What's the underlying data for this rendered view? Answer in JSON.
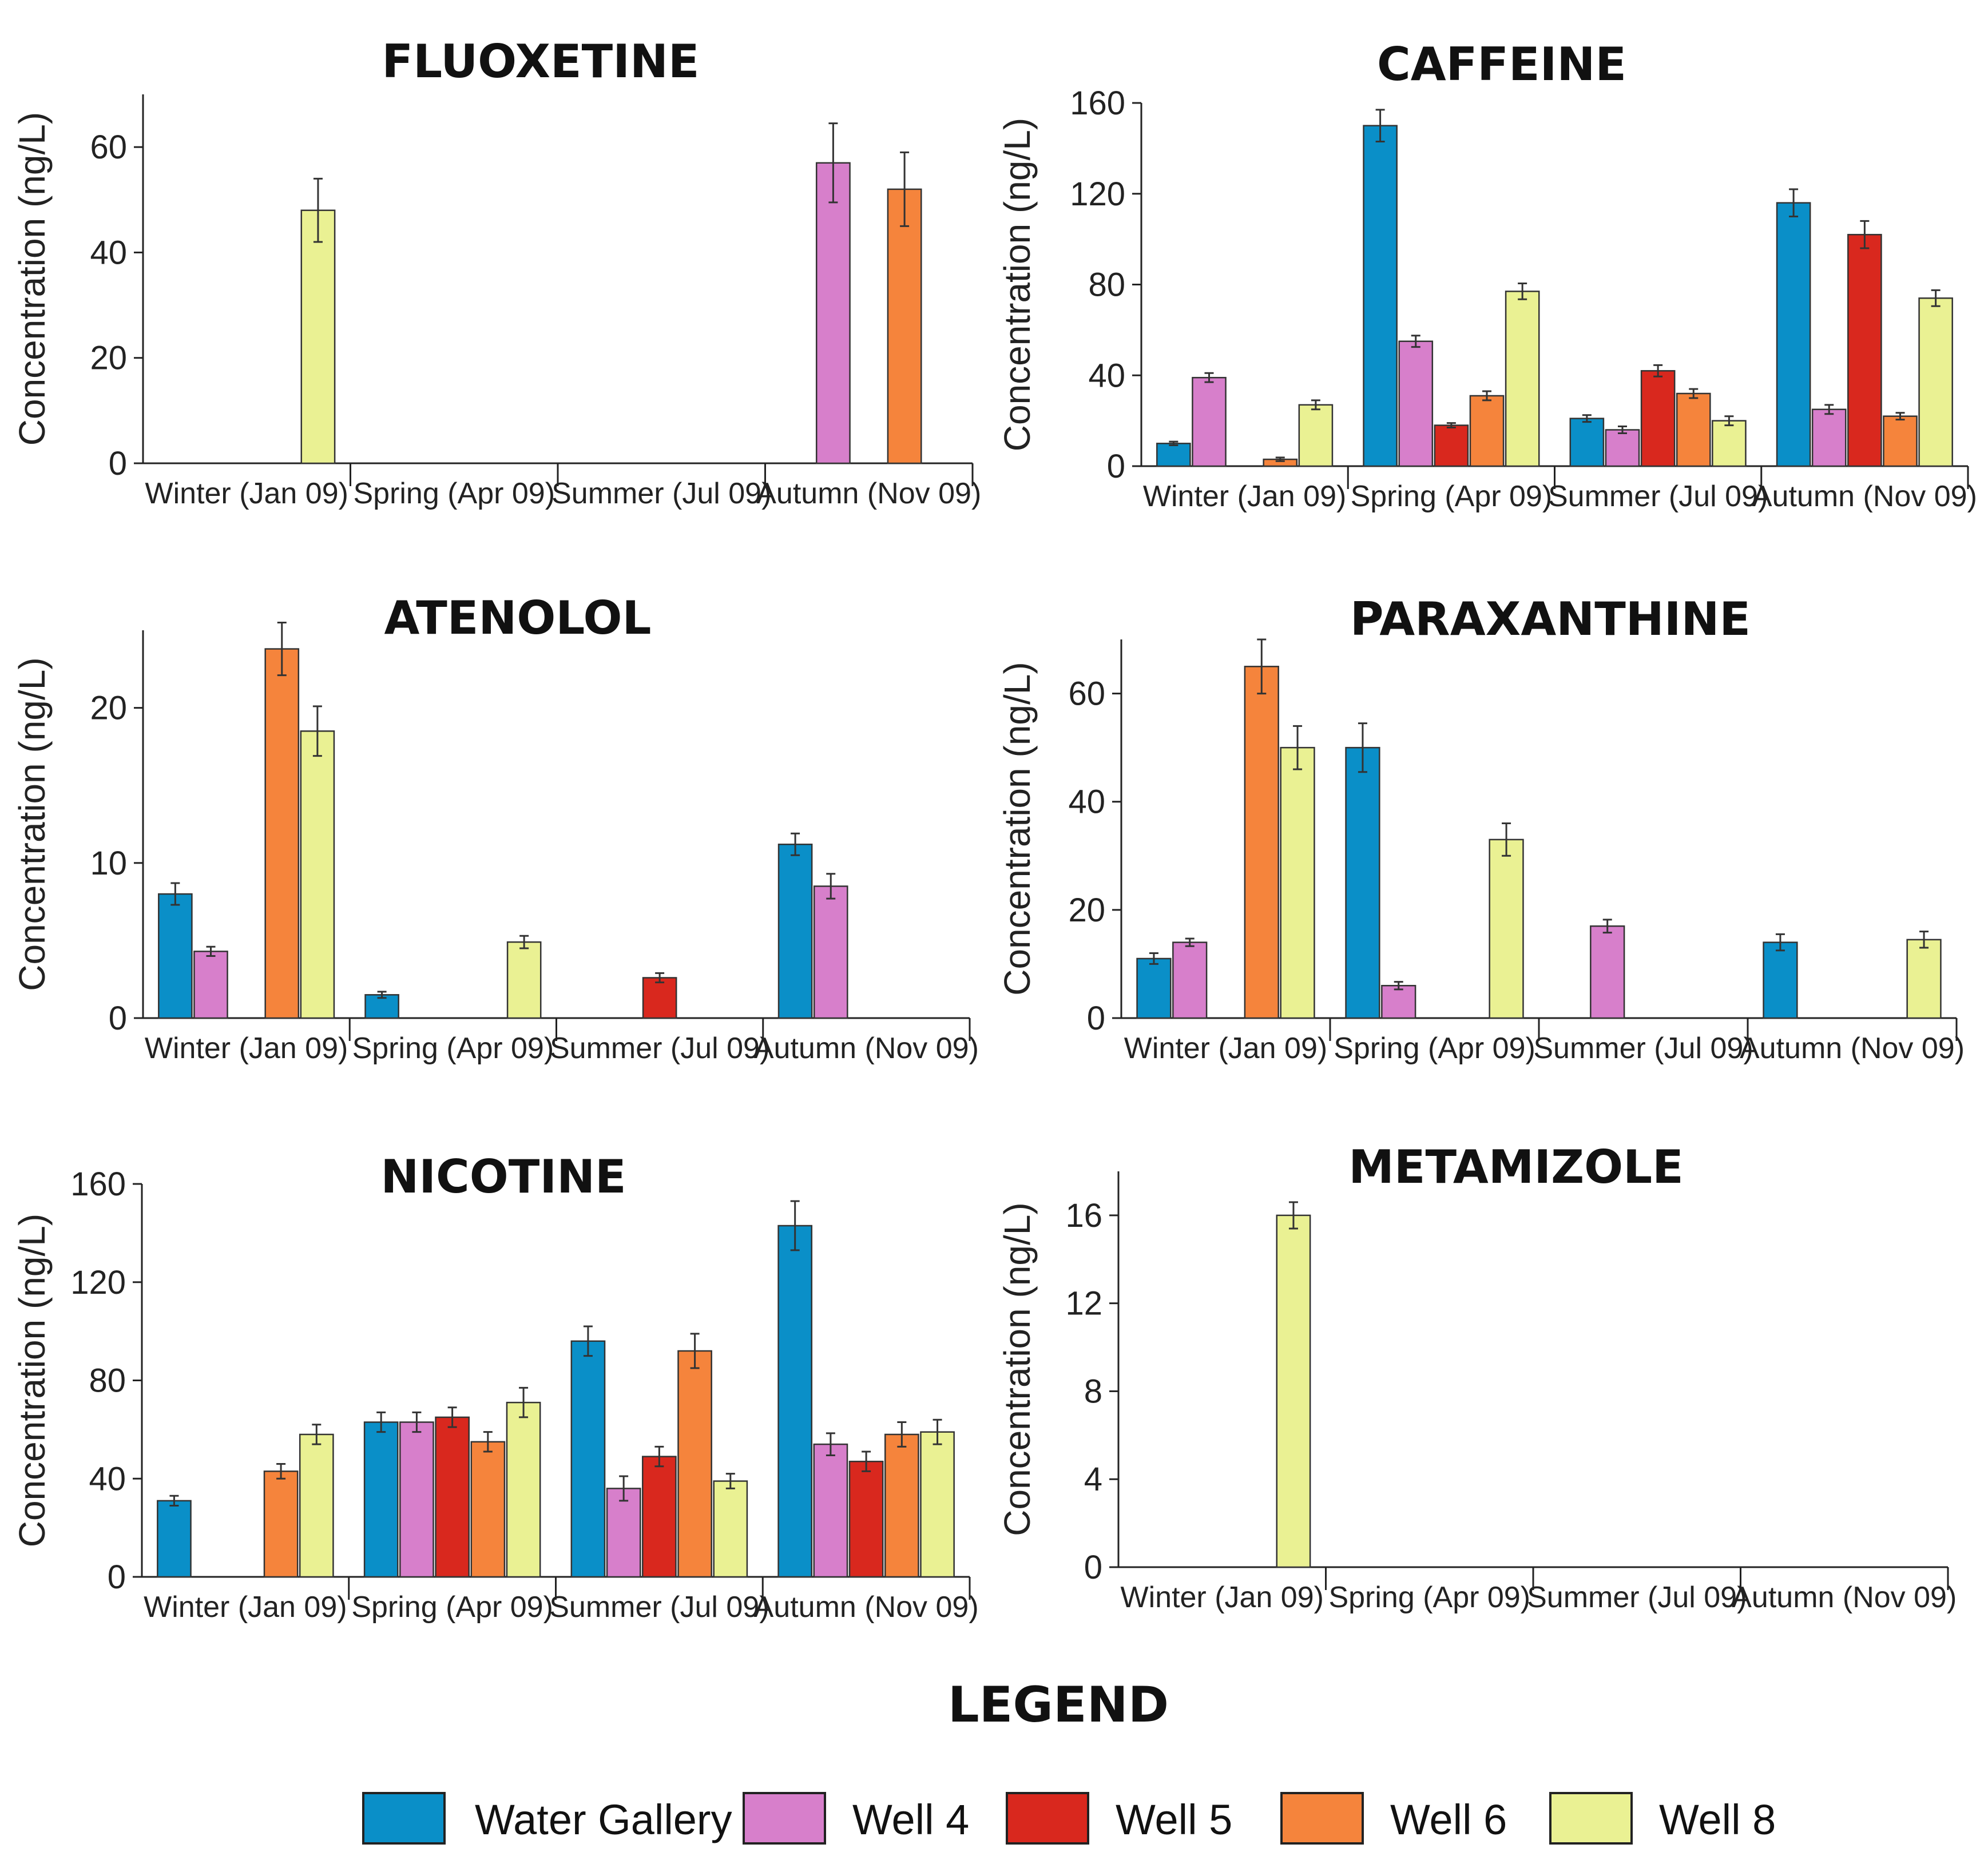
{
  "legend": {
    "title": "LEGEND",
    "items": [
      {
        "name": "Water Gallery",
        "color": "#0a8fc8"
      },
      {
        "name": "Well 4",
        "color": "#d77fcb"
      },
      {
        "name": "Well 5",
        "color": "#d9281e"
      },
      {
        "name": "Well 6",
        "color": "#f5843c"
      },
      {
        "name": "Well 8",
        "color": "#eaf193"
      }
    ]
  },
  "chart_data": [
    {
      "type": "bar",
      "title": "FLUOXETINE",
      "ylabel": "Concentration (ng/L)",
      "xlabel": "",
      "categories": [
        "Winter (Jan 09)",
        "Spring (Apr 09)",
        "Summer (Jul 09)",
        "Autumn (Nov 09)"
      ],
      "ylim": [
        0,
        70
      ],
      "yticks": [
        0,
        20,
        40,
        60
      ],
      "series": [
        {
          "name": "Water Gallery",
          "values": [
            null,
            null,
            null,
            null
          ],
          "errors": [
            null,
            null,
            null,
            null
          ]
        },
        {
          "name": "Well 4",
          "values": [
            null,
            null,
            null,
            57
          ],
          "errors": [
            null,
            null,
            null,
            7.5
          ]
        },
        {
          "name": "Well 5",
          "values": [
            null,
            null,
            null,
            null
          ],
          "errors": [
            null,
            null,
            null,
            null
          ]
        },
        {
          "name": "Well 6",
          "values": [
            null,
            null,
            null,
            52
          ],
          "errors": [
            null,
            null,
            null,
            7
          ]
        },
        {
          "name": "Well 8",
          "values": [
            48,
            null,
            null,
            null
          ],
          "errors": [
            6,
            null,
            null,
            null
          ]
        }
      ]
    },
    {
      "type": "bar",
      "title": "CAFFEINE",
      "ylabel": "Concentration (ng/L)",
      "xlabel": "",
      "categories": [
        "Winter (Jan 09)",
        "Spring (Apr 09)",
        "Summer (Jul 09)",
        "Autumn (Nov 09)"
      ],
      "ylim": [
        0,
        160
      ],
      "yticks": [
        0,
        40,
        80,
        120,
        160
      ],
      "series": [
        {
          "name": "Water Gallery",
          "values": [
            10,
            150,
            21,
            116
          ],
          "errors": [
            0.8,
            7,
            1.5,
            6
          ]
        },
        {
          "name": "Well 4",
          "values": [
            39,
            55,
            16,
            25
          ],
          "errors": [
            2,
            2.5,
            1.5,
            2
          ]
        },
        {
          "name": "Well 5",
          "values": [
            null,
            18,
            42,
            102
          ],
          "errors": [
            null,
            1,
            2.5,
            6
          ]
        },
        {
          "name": "Well 6",
          "values": [
            3,
            31,
            32,
            22
          ],
          "errors": [
            0.8,
            2,
            2,
            1.5
          ]
        },
        {
          "name": "Well 8",
          "values": [
            27,
            77,
            20,
            74
          ],
          "errors": [
            2,
            3.5,
            2,
            3.5
          ]
        }
      ]
    },
    {
      "type": "bar",
      "title": "ATENOLOL",
      "ylabel": "Concentration (ng/L)",
      "xlabel": "",
      "categories": [
        "Winter (Jan 09)",
        "Spring (Apr 09)",
        "Summer (Jul 09)",
        "Autumn (Nov 09)"
      ],
      "ylim": [
        0,
        25
      ],
      "yticks": [
        0,
        10,
        20
      ],
      "series": [
        {
          "name": "Water Gallery",
          "values": [
            8,
            1.5,
            null,
            11.2
          ],
          "errors": [
            0.7,
            0.2,
            null,
            0.7
          ]
        },
        {
          "name": "Well 4",
          "values": [
            4.3,
            null,
            null,
            8.5
          ],
          "errors": [
            0.3,
            null,
            null,
            0.8
          ]
        },
        {
          "name": "Well 5",
          "values": [
            null,
            null,
            2.6,
            null
          ],
          "errors": [
            null,
            null,
            0.3,
            null
          ]
        },
        {
          "name": "Well 6",
          "values": [
            23.8,
            null,
            null,
            null
          ],
          "errors": [
            1.7,
            null,
            null,
            null
          ]
        },
        {
          "name": "Well 8",
          "values": [
            18.5,
            4.9,
            null,
            null
          ],
          "errors": [
            1.6,
            0.4,
            null,
            null
          ]
        }
      ]
    },
    {
      "type": "bar",
      "title": "PARAXANTHINE",
      "ylabel": "Concentration (ng/L)",
      "xlabel": "",
      "categories": [
        "Winter (Jan 09)",
        "Spring (Apr 09)",
        "Summer (Jul 09)",
        "Autumn (Nov 09)"
      ],
      "ylim": [
        0,
        70
      ],
      "yticks": [
        0,
        20,
        40,
        60
      ],
      "series": [
        {
          "name": "Water Gallery",
          "values": [
            11,
            50,
            null,
            14
          ],
          "errors": [
            1,
            4.5,
            null,
            1.5
          ]
        },
        {
          "name": "Well 4",
          "values": [
            14,
            6,
            17,
            null
          ],
          "errors": [
            0.7,
            0.7,
            1.2,
            null
          ]
        },
        {
          "name": "Well 5",
          "values": [
            null,
            null,
            null,
            null
          ],
          "errors": [
            null,
            null,
            null,
            null
          ]
        },
        {
          "name": "Well 6",
          "values": [
            65,
            null,
            null,
            null
          ],
          "errors": [
            5,
            null,
            null,
            null
          ]
        },
        {
          "name": "Well 8",
          "values": [
            50,
            33,
            null,
            14.5
          ],
          "errors": [
            4,
            3,
            null,
            1.5
          ]
        }
      ]
    },
    {
      "type": "bar",
      "title": "NICOTINE",
      "ylabel": "Concentration (ng/L)",
      "xlabel": "",
      "categories": [
        "Winter (Jan 09)",
        "Spring (Apr 09)",
        "Summer (Jul 09)",
        "Autumn (Nov 09)"
      ],
      "ylim": [
        0,
        160
      ],
      "yticks": [
        0,
        40,
        80,
        120,
        160
      ],
      "series": [
        {
          "name": "Water Gallery",
          "values": [
            31,
            63,
            96,
            143
          ],
          "errors": [
            2,
            4,
            6,
            10
          ]
        },
        {
          "name": "Well 4",
          "values": [
            null,
            63,
            36,
            54
          ],
          "errors": [
            null,
            4,
            5,
            4.5
          ]
        },
        {
          "name": "Well 5",
          "values": [
            null,
            65,
            49,
            47
          ],
          "errors": [
            null,
            4,
            4,
            4
          ]
        },
        {
          "name": "Well 6",
          "values": [
            43,
            55,
            92,
            58
          ],
          "errors": [
            3,
            4,
            7,
            5
          ]
        },
        {
          "name": "Well 8",
          "values": [
            58,
            71,
            39,
            59
          ],
          "errors": [
            4,
            6,
            3,
            5
          ]
        }
      ]
    },
    {
      "type": "bar",
      "title": "METAMIZOLE",
      "ylabel": "Concentration (ng/L)",
      "xlabel": "",
      "categories": [
        "Winter (Jan 09)",
        "Spring (Apr 09)",
        "Summer (Jul 09)",
        "Autumn (Nov 09)"
      ],
      "ylim": [
        0,
        18
      ],
      "yticks": [
        0,
        4,
        8,
        12,
        16
      ],
      "series": [
        {
          "name": "Water Gallery",
          "values": [
            null,
            null,
            null,
            null
          ],
          "errors": [
            null,
            null,
            null,
            null
          ]
        },
        {
          "name": "Well 4",
          "values": [
            null,
            null,
            null,
            null
          ],
          "errors": [
            null,
            null,
            null,
            null
          ]
        },
        {
          "name": "Well 5",
          "values": [
            null,
            null,
            null,
            null
          ],
          "errors": [
            null,
            null,
            null,
            null
          ]
        },
        {
          "name": "Well 6",
          "values": [
            null,
            null,
            null,
            null
          ],
          "errors": [
            null,
            null,
            null,
            null
          ]
        },
        {
          "name": "Well 8",
          "values": [
            16,
            null,
            null,
            null
          ],
          "errors": [
            0.6,
            null,
            null,
            null
          ]
        }
      ]
    }
  ]
}
